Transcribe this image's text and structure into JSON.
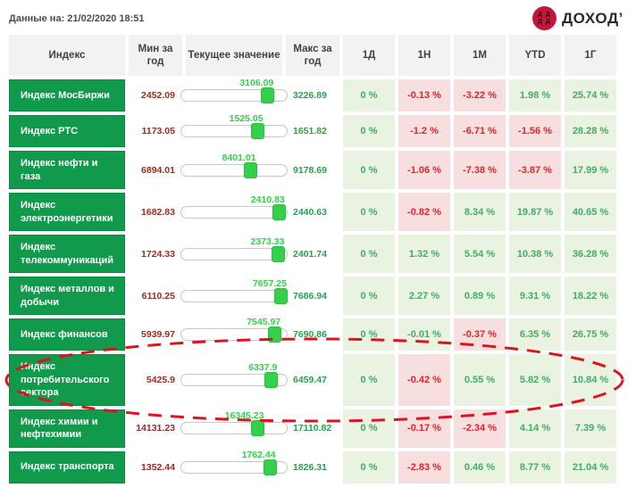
{
  "page": {
    "data_as_of": "Данные на: 21/02/2020 18:51"
  },
  "logo": {
    "text": "ДОХОД’",
    "mark_lines": [
      "Д Д",
      "Д Д"
    ]
  },
  "table": {
    "col_index": "Индекс",
    "col_min": "Мин за год",
    "col_current": "Текущее значение",
    "col_max": "Макс за год",
    "period_cols": [
      "1Д",
      "1Н",
      "1М",
      "YTD",
      "1Г"
    ]
  },
  "rows": [
    {
      "name": "Индекс МосБиржи",
      "min": "2452.09",
      "current": "3106.09",
      "max": "3226.89",
      "pct": [
        {
          "text": "0 %",
          "tone": "pos"
        },
        {
          "text": "-0.13 %",
          "tone": "neg"
        },
        {
          "text": "-3.22 %",
          "tone": "neg"
        },
        {
          "text": "1.98 %",
          "tone": "pos"
        },
        {
          "text": "25.74 %",
          "tone": "pos"
        }
      ]
    },
    {
      "name": "Индекс РТС",
      "min": "1173.05",
      "current": "1525.05",
      "max": "1651.82",
      "pct": [
        {
          "text": "0 %",
          "tone": "pos"
        },
        {
          "text": "-1.2 %",
          "tone": "neg"
        },
        {
          "text": "-6.71 %",
          "tone": "neg"
        },
        {
          "text": "-1.56 %",
          "tone": "neg"
        },
        {
          "text": "28.28 %",
          "tone": "pos"
        }
      ]
    },
    {
      "name": "Индекс нефти и газа",
      "min": "6894.01",
      "current": "8401.01",
      "max": "9178.69",
      "pct": [
        {
          "text": "0 %",
          "tone": "pos"
        },
        {
          "text": "-1.06 %",
          "tone": "neg"
        },
        {
          "text": "-7.38 %",
          "tone": "neg"
        },
        {
          "text": "-3.87 %",
          "tone": "neg"
        },
        {
          "text": "17.99 %",
          "tone": "pos"
        }
      ]
    },
    {
      "name": "Индекс электроэнергетики",
      "min": "1682.83",
      "current": "2410.83",
      "max": "2440.63",
      "pct": [
        {
          "text": "0 %",
          "tone": "pos"
        },
        {
          "text": "-0.82 %",
          "tone": "neg"
        },
        {
          "text": "8.34 %",
          "tone": "pos"
        },
        {
          "text": "19.87 %",
          "tone": "pos"
        },
        {
          "text": "40.65 %",
          "tone": "pos"
        }
      ]
    },
    {
      "name": "Индекс телекоммуникаций",
      "min": "1724.33",
      "current": "2373.33",
      "max": "2401.74",
      "pct": [
        {
          "text": "0 %",
          "tone": "pos"
        },
        {
          "text": "1.32 %",
          "tone": "pos"
        },
        {
          "text": "5.54 %",
          "tone": "pos"
        },
        {
          "text": "10.38 %",
          "tone": "pos"
        },
        {
          "text": "36.28 %",
          "tone": "pos"
        }
      ]
    },
    {
      "name": "Индекс металлов и добычи",
      "min": "6110.25",
      "current": "7657.25",
      "max": "7686.94",
      "pct": [
        {
          "text": "0 %",
          "tone": "pos"
        },
        {
          "text": "2.27 %",
          "tone": "pos"
        },
        {
          "text": "0.89 %",
          "tone": "pos"
        },
        {
          "text": "9.31 %",
          "tone": "pos"
        },
        {
          "text": "18.22 %",
          "tone": "pos"
        }
      ]
    },
    {
      "name": "Индекс финансов",
      "min": "5939.97",
      "current": "7545.97",
      "max": "7690.86",
      "pct": [
        {
          "text": "0 %",
          "tone": "pos"
        },
        {
          "text": "-0.01 %",
          "tone": "pos"
        },
        {
          "text": "-0.37 %",
          "tone": "neg"
        },
        {
          "text": "6.35 %",
          "tone": "pos"
        },
        {
          "text": "26.75 %",
          "tone": "pos"
        }
      ]
    },
    {
      "name": "Индекс потребительского сектора",
      "min": "5425.9",
      "current": "6337.9",
      "max": "6459.47",
      "annotated": true,
      "pct": [
        {
          "text": "0 %",
          "tone": "pos"
        },
        {
          "text": "-0.42 %",
          "tone": "neg"
        },
        {
          "text": "0.55 %",
          "tone": "pos"
        },
        {
          "text": "5.82 %",
          "tone": "pos"
        },
        {
          "text": "10.84 %",
          "tone": "pos"
        }
      ]
    },
    {
      "name": "Индекс химии и нефтехимии",
      "min": "14131.23",
      "current": "16345.23",
      "max": "17110.82",
      "pct": [
        {
          "text": "0 %",
          "tone": "pos"
        },
        {
          "text": "-0.17 %",
          "tone": "neg"
        },
        {
          "text": "-2.34 %",
          "tone": "neg"
        },
        {
          "text": "4.14 %",
          "tone": "pos"
        },
        {
          "text": "7.39 %",
          "tone": "pos"
        }
      ]
    },
    {
      "name": "Индекс транспорта",
      "min": "1352.44",
      "current": "1762.44",
      "max": "1826.31",
      "pct": [
        {
          "text": "0 %",
          "tone": "pos"
        },
        {
          "text": "-2.83 %",
          "tone": "neg"
        },
        {
          "text": "0.46 %",
          "tone": "pos"
        },
        {
          "text": "8.77 %",
          "tone": "pos"
        },
        {
          "text": "21.04 %",
          "tone": "pos"
        }
      ]
    }
  ],
  "annotation": {
    "type": "dashed-ellipse",
    "target_row": "Индекс потребительского сектора"
  },
  "colors": {
    "indexGreen": "#119a4b",
    "indexGreenBorder": "#0d8a41",
    "headerBg": "#f2f2f2",
    "headerTx": "#414042",
    "posBg": "#eaf3e1",
    "posTx": "#42ab67",
    "negBg": "#f7dfe0",
    "negTx": "#e2242c",
    "minTx": "#9e2a21",
    "maxTx": "#2d9e4f",
    "currentTx": "#35d04a",
    "handle": "#35d04a",
    "logoRed": "#c2173b",
    "annot": "#dc1420"
  }
}
